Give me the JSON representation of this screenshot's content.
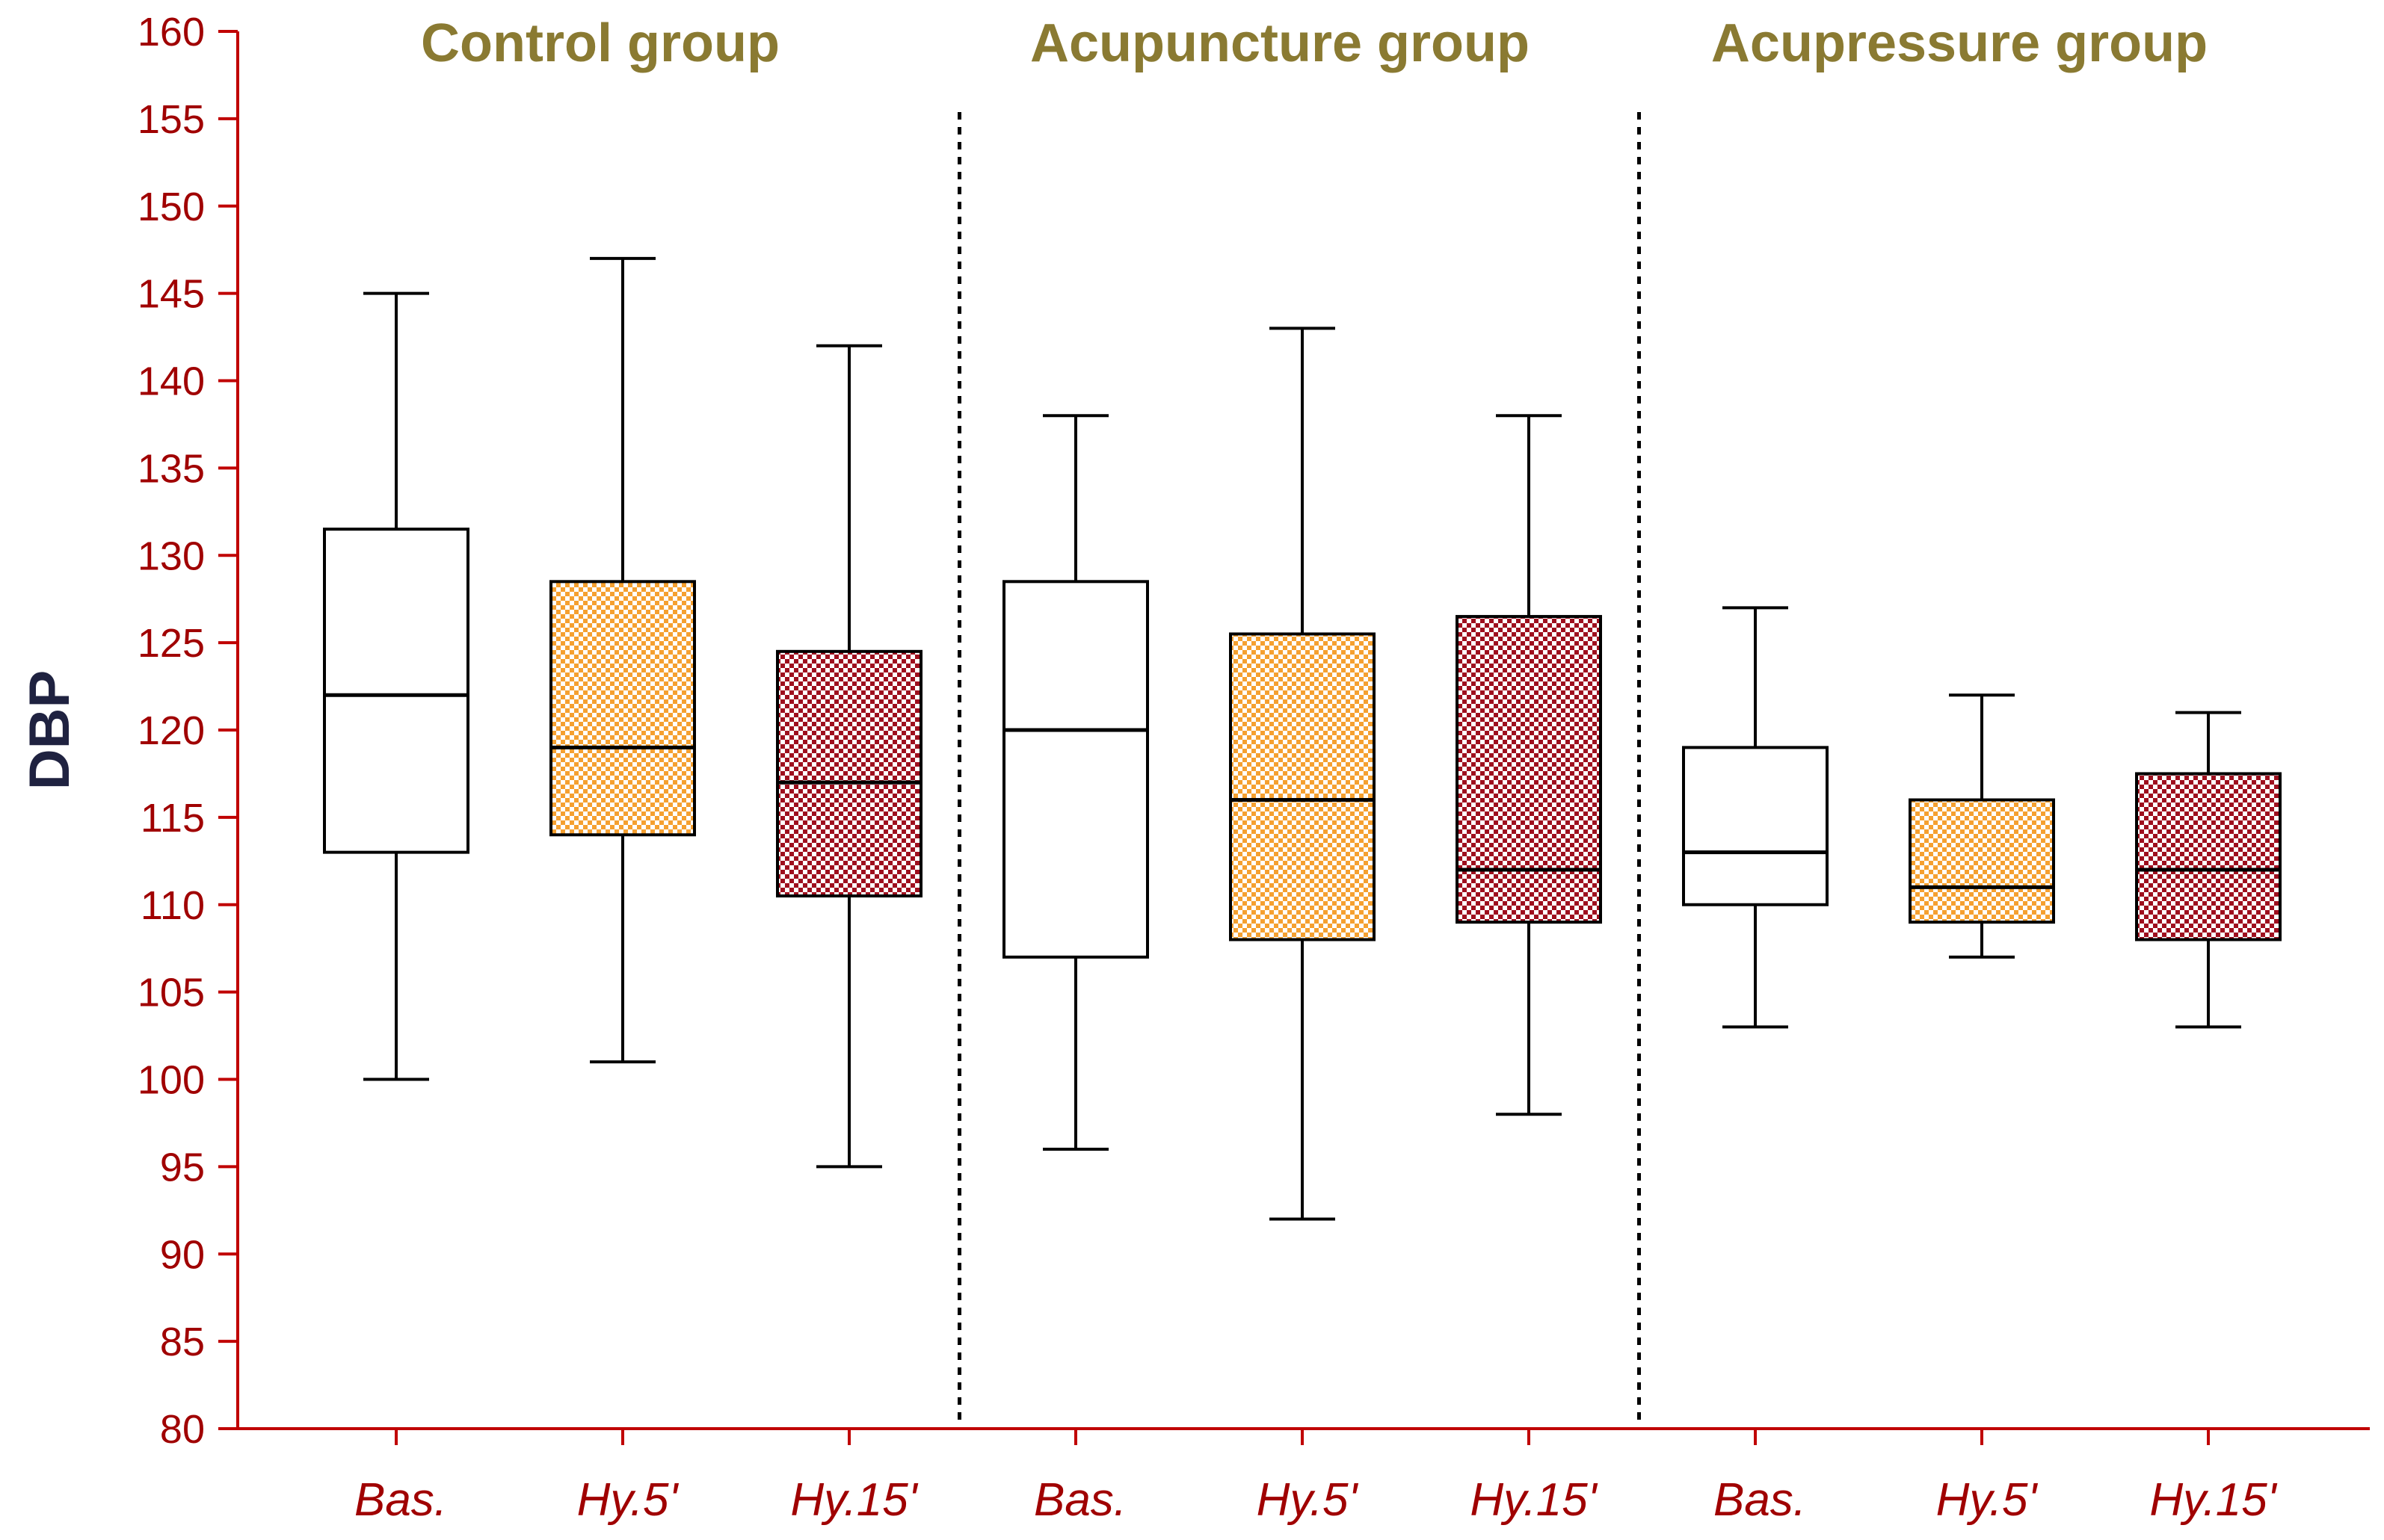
{
  "chart_data": {
    "type": "boxplot",
    "ylabel": "DBP",
    "ylim": [
      80,
      160
    ],
    "yticks": [
      80,
      85,
      90,
      95,
      100,
      105,
      110,
      115,
      120,
      125,
      130,
      135,
      140,
      145,
      150,
      155,
      160
    ],
    "grid": false,
    "colors": {
      "axis": "#c00000",
      "box_stroke": "#000000",
      "bas_fill": "#ffffff",
      "hy5_fill": "#f5a030",
      "hy15_fill": "#9e0f1e",
      "check_light": "#ffffff"
    },
    "groups": [
      {
        "title": "Control group",
        "boxes": [
          {
            "label": "Bas.",
            "pattern": "none",
            "min": 100,
            "q1": 113,
            "median": 122,
            "q3": 131.5,
            "max": 145
          },
          {
            "label": "Hy.5'",
            "pattern": "orange-check",
            "min": 101,
            "q1": 114,
            "median": 119,
            "q3": 128.5,
            "max": 147
          },
          {
            "label": "Hy.15'",
            "pattern": "red-check",
            "min": 95,
            "q1": 110.5,
            "median": 117,
            "q3": 124.5,
            "max": 142
          }
        ]
      },
      {
        "title": "Acupuncture group",
        "boxes": [
          {
            "label": "Bas.",
            "pattern": "none",
            "min": 96,
            "q1": 107,
            "median": 120,
            "q3": 128.5,
            "max": 138
          },
          {
            "label": "Hy.5'",
            "pattern": "orange-check",
            "min": 92,
            "q1": 108,
            "median": 116,
            "q3": 125.5,
            "max": 143
          },
          {
            "label": "Hy.15'",
            "pattern": "red-check",
            "min": 98,
            "q1": 109,
            "median": 112,
            "q3": 126.5,
            "max": 138
          }
        ]
      },
      {
        "title": "Acupressure group",
        "boxes": [
          {
            "label": "Bas.",
            "pattern": "none",
            "min": 103,
            "q1": 110,
            "median": 113,
            "q3": 119,
            "max": 127
          },
          {
            "label": "Hy.5'",
            "pattern": "orange-check",
            "min": 107,
            "q1": 109,
            "median": 111,
            "q3": 116,
            "max": 122
          },
          {
            "label": "Hy.15'",
            "pattern": "red-check",
            "min": 103,
            "q1": 108,
            "median": 112,
            "q3": 117.5,
            "max": 121
          }
        ]
      }
    ]
  }
}
